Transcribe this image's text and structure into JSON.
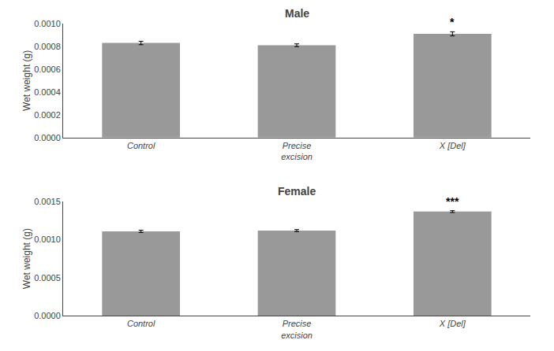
{
  "chart_data": [
    {
      "type": "bar",
      "title": "Male",
      "categories": [
        "Control",
        "Precise\nexcision",
        "X [Del]"
      ],
      "values": [
        0.00083,
        0.00081,
        0.00091
      ],
      "errors": [
        1.5e-05,
        1.2e-05,
        1.8e-05
      ],
      "color": "#999999",
      "ylabel": "Wet weight (g)",
      "ylim": [
        0,
        0.001
      ],
      "yticks": [
        {
          "value": 0.0,
          "label": "0.0000"
        },
        {
          "value": 0.0002,
          "label": "0.0002"
        },
        {
          "value": 0.0004,
          "label": "0.0004"
        },
        {
          "value": 0.0006,
          "label": "0.0006"
        },
        {
          "value": 0.0008,
          "label": "0.0008"
        },
        {
          "value": 0.001,
          "label": "0.0010"
        }
      ],
      "annotations": [
        {
          "x": "X [Del]",
          "text": "*"
        }
      ],
      "grid": false
    },
    {
      "type": "bar",
      "title": "Female",
      "categories": [
        "Control",
        "Precise\nexcision",
        "X [Del]"
      ],
      "values": [
        0.00111,
        0.00112,
        0.00137
      ],
      "errors": [
        1.5e-05,
        1.3e-05,
        1.2e-05
      ],
      "color": "#999999",
      "ylabel": "Wet weight (g)",
      "ylim": [
        0,
        0.0015
      ],
      "yticks": [
        {
          "value": 0.0,
          "label": "0.0000"
        },
        {
          "value": 0.0005,
          "label": "0.0005"
        },
        {
          "value": 0.001,
          "label": "0.0010"
        },
        {
          "value": 0.0015,
          "label": "0.0015"
        }
      ],
      "annotations": [
        {
          "x": "X [Del]",
          "text": "***"
        }
      ],
      "grid": false
    }
  ]
}
